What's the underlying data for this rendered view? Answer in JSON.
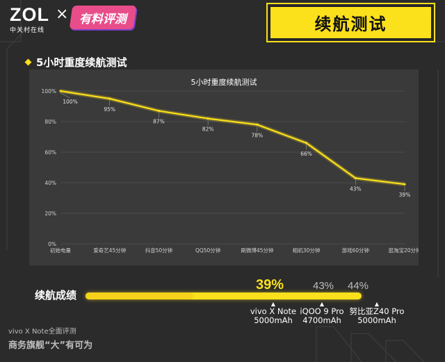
{
  "header": {
    "logo_text": "ZOL",
    "logo_sub": "中关村在线",
    "cross": "×",
    "badge_text": "有料评测",
    "title": "续航测试"
  },
  "section_title": "5小时重度续航测试",
  "chart_data": {
    "type": "line",
    "title": "5小时重度续航测试",
    "categories": [
      "初始电量",
      "爱奇艺45分钟",
      "抖音50分钟",
      "QQ50分钟",
      "刷微博45分钟",
      "相机30分钟",
      "游戏60分钟",
      "逛淘宝20分钟"
    ],
    "values": [
      100,
      95,
      87,
      82,
      78,
      66,
      43,
      39
    ],
    "value_labels": [
      "100%",
      "95%",
      "87%",
      "82%",
      "78%",
      "66%",
      "43%",
      "39%"
    ],
    "y_ticks": [
      "0%",
      "20%",
      "40%",
      "60%",
      "80%",
      "100%"
    ],
    "ylim": [
      0,
      100
    ],
    "line_color": "#fbe01c",
    "grid": true
  },
  "result": {
    "label": "续航成绩",
    "main_pct": "39%",
    "main_value": 39,
    "pct_2": "43%",
    "pct_3": "44%",
    "markers": [
      {
        "name": "vivo X Note",
        "battery": "5000mAh"
      },
      {
        "name": "iQOO 9 Pro",
        "battery": "4700mAh"
      },
      {
        "name": "努比亚Z40 Pro",
        "battery": "5000mAh"
      }
    ]
  },
  "footer": {
    "line1": "vivo X Note全面评测",
    "line2": "商务旗舰“大”有可为"
  },
  "colors": {
    "accent": "#fbe01c",
    "background": "#2b2b2b",
    "panel": "#3a3a3a"
  }
}
